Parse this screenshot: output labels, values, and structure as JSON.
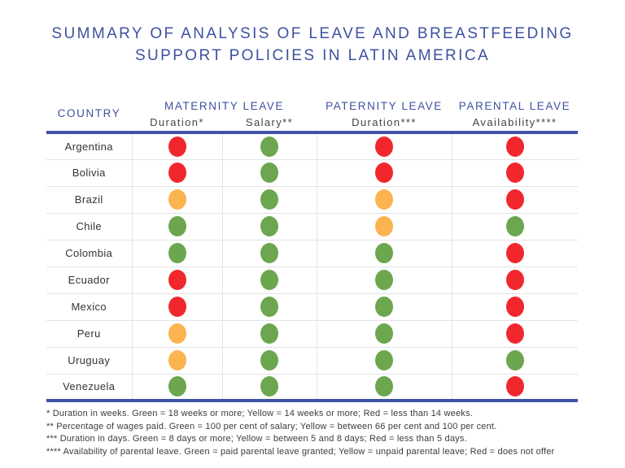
{
  "title": {
    "line1": "SUMMARY OF ANALYSIS OF LEAVE AND BREASTFEEDING",
    "line2": "SUPPORT POLICIES IN LATIN AMERICA"
  },
  "table": {
    "country_header": "COUNTRY",
    "groups": [
      {
        "label": "MATERNITY LEAVE",
        "subcolumns": [
          "Duration*",
          "Salary**"
        ]
      },
      {
        "label": "PATERNITY LEAVE",
        "subcolumns": [
          "Duration***"
        ]
      },
      {
        "label": "PARENTAL LEAVE",
        "subcolumns": [
          "Availability****"
        ]
      }
    ]
  },
  "status_colors": {
    "red": "#F0282D",
    "yellow": "#FBB450",
    "green": "#6CA64F"
  },
  "accent_blue": "#3D53A6",
  "chart_data": {
    "type": "table",
    "title": "Summary of analysis of leave and breastfeeding support policies in Latin America",
    "columns": [
      "Country",
      "Maternity leave - Duration*",
      "Maternity leave - Salary**",
      "Paternity leave - Duration***",
      "Parental leave - Availability****"
    ],
    "rows": [
      [
        "Argentina",
        "red",
        "green",
        "red",
        "red"
      ],
      [
        "Bolivia",
        "red",
        "green",
        "red",
        "red"
      ],
      [
        "Brazil",
        "yellow",
        "green",
        "yellow",
        "red"
      ],
      [
        "Chile",
        "green",
        "green",
        "yellow",
        "green"
      ],
      [
        "Colombia",
        "green",
        "green",
        "green",
        "red"
      ],
      [
        "Ecuador",
        "red",
        "green",
        "green",
        "red"
      ],
      [
        "Mexico",
        "red",
        "green",
        "green",
        "red"
      ],
      [
        "Peru",
        "yellow",
        "green",
        "green",
        "red"
      ],
      [
        "Uruguay",
        "yellow",
        "green",
        "green",
        "green"
      ],
      [
        "Venezuela",
        "green",
        "green",
        "green",
        "red"
      ]
    ],
    "legend_position": "bottom-footnotes",
    "color_key": {
      "maternity_duration": "Green = 18 weeks or more; Yellow = 14 weeks or more; Red = less than 14 weeks",
      "maternity_salary": "Green = 100 per cent of salary; Yellow = between 66 per cent and 100 per cent",
      "paternity_duration": "Green = 8 days or more; Yellow = between 5 and 8 days; Red = less than 5 days",
      "parental_availability": "Green = paid parental leave granted; Yellow = unpaid parental leave; Red = does not offer"
    }
  },
  "footnotes": [
    "* Duration in weeks. Green = 18 weeks or more; Yellow = 14 weeks or more; Red = less than 14 weeks.",
    "** Percentage of wages paid. Green = 100 per cent of salary; Yellow = between 66 per cent and 100 per cent.",
    "*** Duration in days. Green = 8 days or more; Yellow = between 5 and 8 days; Red = less than 5 days.",
    "**** Availability of parental leave. Green = paid parental leave granted; Yellow = unpaid parental leave; Red = does not offer"
  ]
}
